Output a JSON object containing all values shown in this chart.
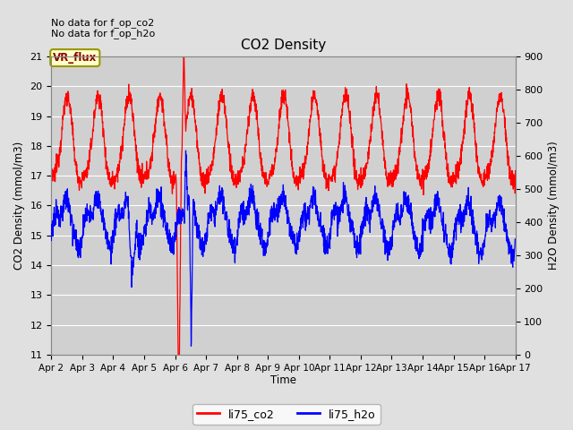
{
  "title": "CO2 Density",
  "xlabel": "Time",
  "ylabel_left": "CO2 Density (mmol/m3)",
  "ylabel_right": "H2O Density (mmol/m3)",
  "text_top_left": "No data for f_op_co2\nNo data for f_op_h2o",
  "vr_flux_label": "VR_flux",
  "ylim_left": [
    11.0,
    21.0
  ],
  "ylim_right": [
    0,
    900
  ],
  "yticks_left": [
    11.0,
    12.0,
    13.0,
    14.0,
    15.0,
    16.0,
    17.0,
    18.0,
    19.0,
    20.0,
    21.0
  ],
  "yticks_right": [
    0,
    100,
    200,
    300,
    400,
    500,
    600,
    700,
    800,
    900
  ],
  "xtick_labels": [
    "Apr 2",
    "Apr 3",
    "Apr 4",
    "Apr 5",
    "Apr 6",
    "Apr 7",
    "Apr 8",
    "Apr 9",
    "Apr 10",
    "Apr 11",
    "Apr 12",
    "Apr 13",
    "Apr 14",
    "Apr 15",
    "Apr 16",
    "Apr 17"
  ],
  "fig_bg_color": "#e0e0e0",
  "plot_bg_color": "#d0d0d0",
  "grid_color": "#ffffff",
  "line_co2_color": "red",
  "line_h2o_color": "blue",
  "line_width": 0.9,
  "legend_co2": "li75_co2",
  "legend_h2o": "li75_h2o",
  "figsize": [
    6.4,
    4.8
  ],
  "dpi": 100
}
